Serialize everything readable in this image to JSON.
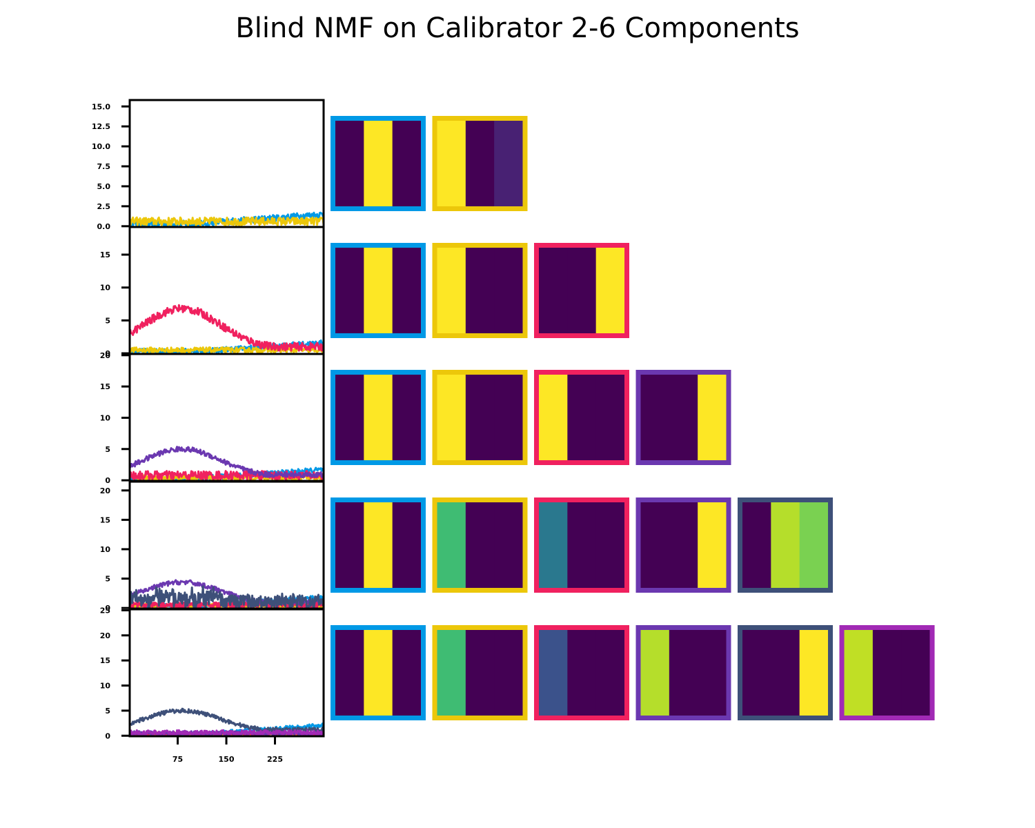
{
  "title": "Blind NMF on Calibrator 2-6 Components",
  "component_colors": [
    "#0099e6",
    "#ecc70a",
    "#f0215f",
    "#6b38b0",
    "#3e5079",
    "#a12ab5"
  ],
  "viridis": {
    "dark": "#440154",
    "dark_purple_2": "#482173",
    "yellow": "#fde725",
    "lime": "#b5de2b",
    "green": "#7ad151",
    "teal_green": "#3fbc73",
    "teal": "#2a788e",
    "blue": "#3b528b",
    "lime2": "#c0df25"
  },
  "chart_data": {
    "type": "line",
    "x_ticks": [
      "75",
      "150",
      "225"
    ],
    "x_range": [
      1,
      300
    ],
    "panels": [
      {
        "n_components": 2,
        "y_ticks": [
          "0.0",
          "2.5",
          "5.0",
          "7.5",
          "10.0",
          "12.5",
          "15.0"
        ],
        "ylim": [
          -0.1,
          15.8
        ],
        "series": [
          {
            "shape": "ramp",
            "base": 0.3,
            "amp": 1.2,
            "noise": 0.4
          },
          {
            "shape": "flat",
            "base": 0.6,
            "amp": 0.0,
            "noise": 0.5
          }
        ],
        "maps": [
          {
            "bands": [
              "dark",
              "yellow",
              "dark"
            ]
          },
          {
            "bands": [
              "yellow",
              "dark",
              "dark_purple_2"
            ]
          }
        ]
      },
      {
        "n_components": 3,
        "y_ticks": [
          "0",
          "5",
          "10",
          "15"
        ],
        "ylim": [
          -0.1,
          19.2
        ],
        "series": [
          {
            "shape": "ramp",
            "base": 0.3,
            "amp": 1.3,
            "noise": 0.4
          },
          {
            "shape": "flat",
            "base": 0.5,
            "amp": 0.0,
            "noise": 0.4
          },
          {
            "shape": "bump",
            "base": 0.6,
            "amp": 6.2,
            "noise": 0.6
          }
        ],
        "maps": [
          {
            "bands": [
              "dark",
              "yellow",
              "dark"
            ]
          },
          {
            "bands": [
              "yellow",
              "dark",
              "dark"
            ]
          },
          {
            "bands": [
              "dark",
              "dark",
              "yellow"
            ]
          }
        ]
      },
      {
        "n_components": 4,
        "y_ticks": [
          "0",
          "5",
          "10",
          "15",
          "20"
        ],
        "ylim": [
          -0.1,
          20.2
        ],
        "series": [
          {
            "shape": "ramp",
            "base": 0.3,
            "amp": 1.4,
            "noise": 0.4
          },
          {
            "shape": "flat",
            "base": 0.4,
            "amp": 0.0,
            "noise": 0.4
          },
          {
            "shape": "flat",
            "base": 0.8,
            "amp": 0.0,
            "noise": 0.7
          },
          {
            "shape": "bump",
            "base": 0.5,
            "amp": 4.5,
            "noise": 0.4
          }
        ],
        "maps": [
          {
            "bands": [
              "dark",
              "yellow",
              "dark"
            ]
          },
          {
            "bands": [
              "yellow",
              "dark",
              "dark"
            ]
          },
          {
            "bands": [
              "yellow",
              "dark",
              "dark"
            ]
          },
          {
            "bands": [
              "dark",
              "dark",
              "yellow"
            ]
          }
        ]
      },
      {
        "n_components": 5,
        "y_ticks": [
          "0",
          "5",
          "10",
          "15",
          "20"
        ],
        "ylim": [
          -0.1,
          21.5
        ],
        "series": [
          {
            "shape": "ramp",
            "base": 0.3,
            "amp": 1.5,
            "noise": 0.4
          },
          {
            "shape": "flat",
            "base": 0.4,
            "amp": 0.0,
            "noise": 0.4
          },
          {
            "shape": "flat",
            "base": 0.5,
            "amp": 0.0,
            "noise": 0.5
          },
          {
            "shape": "bump",
            "base": 0.6,
            "amp": 3.8,
            "noise": 0.4
          },
          {
            "shape": "hash",
            "base": 0.8,
            "amp": 2.0,
            "noise": 1.2
          }
        ],
        "maps": [
          {
            "bands": [
              "dark",
              "yellow",
              "dark"
            ]
          },
          {
            "bands": [
              "teal_green",
              "dark",
              "dark"
            ]
          },
          {
            "bands": [
              "teal",
              "dark",
              "dark"
            ]
          },
          {
            "bands": [
              "dark",
              "dark",
              "yellow"
            ]
          },
          {
            "bands": [
              "dark",
              "lime",
              "green"
            ]
          }
        ]
      },
      {
        "n_components": 6,
        "y_ticks": [
          "0",
          "5",
          "10",
          "15",
          "20",
          "25"
        ],
        "ylim": [
          -0.1,
          25.2
        ],
        "series": [
          {
            "shape": "ramp",
            "base": 0.3,
            "amp": 1.8,
            "noise": 0.4
          },
          {
            "shape": "flat",
            "base": 0.4,
            "amp": 0.0,
            "noise": 0.3
          },
          {
            "shape": "flat",
            "base": 0.4,
            "amp": 0.0,
            "noise": 0.3
          },
          {
            "shape": "flat",
            "base": 0.5,
            "amp": 0.0,
            "noise": 0.4
          },
          {
            "shape": "bump",
            "base": 0.8,
            "amp": 4.2,
            "noise": 0.4
          },
          {
            "shape": "flat",
            "base": 0.6,
            "amp": 0.0,
            "noise": 0.5
          }
        ],
        "maps": [
          {
            "bands": [
              "dark",
              "yellow",
              "dark"
            ]
          },
          {
            "bands": [
              "teal_green",
              "dark",
              "dark"
            ]
          },
          {
            "bands": [
              "blue",
              "dark",
              "dark"
            ]
          },
          {
            "bands": [
              "lime",
              "dark",
              "dark"
            ]
          },
          {
            "bands": [
              "dark",
              "dark",
              "yellow"
            ]
          },
          {
            "bands": [
              "lime2",
              "dark",
              "dark"
            ]
          }
        ]
      }
    ]
  }
}
